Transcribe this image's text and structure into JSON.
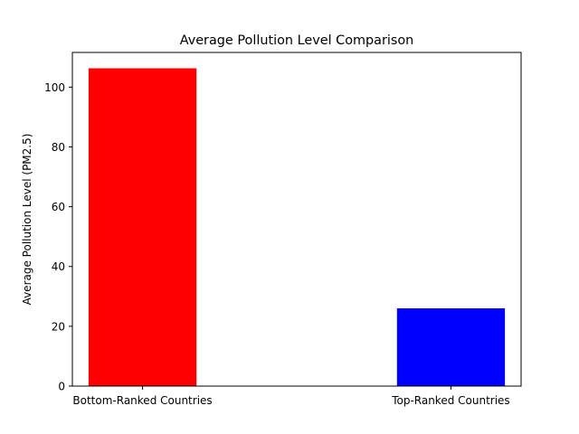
{
  "chart_data": {
    "type": "bar",
    "title": "Average Pollution Level Comparison",
    "xlabel": "",
    "ylabel": "Average Pollution Level (PM2.5)",
    "categories": [
      "Bottom-Ranked Countries",
      "Top-Ranked Countries"
    ],
    "values": [
      106.3,
      26.0
    ],
    "colors": [
      "#ff0000",
      "#0000ff"
    ],
    "ylim": [
      0,
      111.6
    ],
    "yticks": [
      0,
      20,
      40,
      60,
      80,
      100
    ],
    "grid": false,
    "legend": "none"
  }
}
